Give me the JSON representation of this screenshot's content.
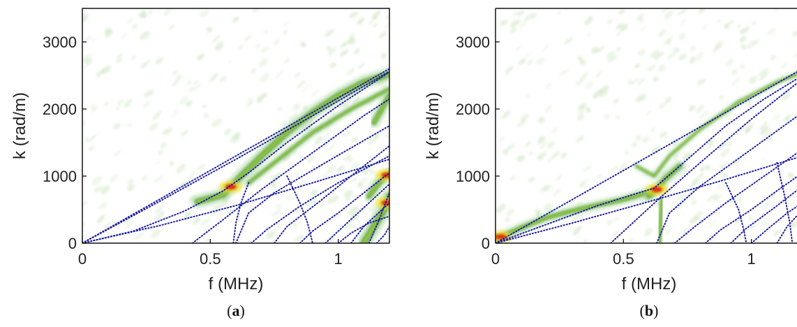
{
  "chart_data": [
    {
      "type": "heatmap",
      "caption_letter": "a",
      "xlabel": "f (MHz)",
      "ylabel": "k (rad/m)",
      "xlim": [
        0,
        1.2
      ],
      "ylim": [
        0,
        3500
      ],
      "xticks": [
        "0",
        "0.5",
        "1"
      ],
      "xtick_values": [
        0,
        0.5,
        1
      ],
      "yticks": [
        "0",
        "1000",
        "2000",
        "3000"
      ],
      "ytick_values": [
        0,
        1000,
        2000,
        3000
      ],
      "overlay_color": "#1a1aa0",
      "overlay_curves": [
        [
          [
            0,
            0
          ],
          [
            0.3,
            650
          ],
          [
            0.6,
            1300
          ],
          [
            0.9,
            1950
          ],
          [
            1.2,
            2600
          ]
        ],
        [
          [
            0,
            0
          ],
          [
            0.3,
            620
          ],
          [
            0.6,
            1250
          ],
          [
            0.9,
            1900
          ],
          [
            1.2,
            2560
          ]
        ],
        [
          [
            0,
            0
          ],
          [
            0.2,
            180
          ],
          [
            0.4,
            480
          ],
          [
            0.55,
            780
          ],
          [
            0.65,
            1050
          ],
          [
            0.8,
            1500
          ],
          [
            1.0,
            2050
          ],
          [
            1.2,
            2550
          ]
        ],
        [
          [
            0,
            0
          ],
          [
            0.3,
            260
          ],
          [
            0.6,
            560
          ],
          [
            0.9,
            900
          ],
          [
            1.2,
            1250
          ]
        ],
        [
          [
            0.43,
            0
          ],
          [
            0.55,
            350
          ],
          [
            0.7,
            800
          ],
          [
            0.9,
            1350
          ],
          [
            1.1,
            1900
          ],
          [
            1.2,
            2150
          ]
        ],
        [
          [
            0.6,
            0
          ],
          [
            0.65,
            450
          ],
          [
            0.75,
            750
          ],
          [
            0.95,
            1200
          ],
          [
            1.2,
            1750
          ]
        ],
        [
          [
            0.65,
            900
          ],
          [
            0.62,
            600
          ],
          [
            0.6,
            300
          ],
          [
            0.59,
            0
          ]
        ],
        [
          [
            0.66,
            0
          ],
          [
            0.72,
            200
          ],
          [
            0.85,
            550
          ],
          [
            1.0,
            900
          ],
          [
            1.2,
            1300
          ]
        ],
        [
          [
            0.75,
            0
          ],
          [
            0.8,
            250
          ],
          [
            0.92,
            600
          ],
          [
            1.05,
            1000
          ],
          [
            1.2,
            1450
          ]
        ],
        [
          [
            0.85,
            0
          ],
          [
            0.9,
            180
          ],
          [
            1.0,
            450
          ],
          [
            1.1,
            750
          ],
          [
            1.2,
            1050
          ]
        ],
        [
          [
            0.8,
            1000
          ],
          [
            0.85,
            600
          ],
          [
            0.88,
            300
          ],
          [
            0.9,
            0
          ]
        ],
        [
          [
            0.95,
            0
          ],
          [
            1.02,
            250
          ],
          [
            1.12,
            600
          ],
          [
            1.2,
            880
          ]
        ],
        [
          [
            1.05,
            0
          ],
          [
            1.1,
            250
          ],
          [
            1.2,
            600
          ]
        ],
        [
          [
            1.12,
            0
          ],
          [
            1.16,
            350
          ],
          [
            1.2,
            750
          ]
        ],
        [
          [
            1.0,
            0
          ],
          [
            1.05,
            150
          ],
          [
            1.12,
            300
          ],
          [
            1.2,
            400
          ]
        ],
        [
          [
            1.15,
            0
          ],
          [
            1.18,
            120
          ],
          [
            1.2,
            250
          ]
        ]
      ],
      "energy_ridges": [
        {
          "points": [
            [
              0.45,
              620
            ],
            [
              0.55,
              720
            ],
            [
              0.62,
              1000
            ],
            [
              0.7,
              1300
            ],
            [
              0.8,
              1650
            ],
            [
              0.9,
              1950
            ],
            [
              1.0,
              2200
            ],
            [
              1.1,
              2400
            ],
            [
              1.2,
              2520
            ]
          ],
          "width": 7,
          "peak_x": 0.58
        },
        {
          "points": [
            [
              0.65,
              900
            ],
            [
              0.75,
              1200
            ],
            [
              0.9,
              1650
            ],
            [
              1.05,
              2000
            ],
            [
              1.2,
              2300
            ]
          ],
          "width": 4
        },
        {
          "points": [
            [
              1.1,
              0
            ],
            [
              1.14,
              250
            ],
            [
              1.18,
              500
            ],
            [
              1.2,
              700
            ]
          ],
          "width": 8,
          "peak_x": 1.19
        },
        {
          "points": [
            [
              1.12,
              700
            ],
            [
              1.16,
              900
            ],
            [
              1.2,
              1050
            ]
          ],
          "width": 6,
          "peak_x": 1.19
        },
        {
          "points": [
            [
              1.14,
              1800
            ],
            [
              1.17,
              2000
            ],
            [
              1.2,
              2200
            ]
          ],
          "width": 6
        }
      ]
    },
    {
      "type": "heatmap",
      "caption_letter": "b",
      "xlabel": "f (MHz)",
      "ylabel": "k (rad/m)",
      "xlim": [
        0,
        1.2
      ],
      "ylim": [
        0,
        3500
      ],
      "xticks": [
        "0",
        "0.5",
        "1"
      ],
      "xtick_values": [
        0,
        0.5,
        1
      ],
      "yticks": [
        "0",
        "1000",
        "2000",
        "3000"
      ],
      "ytick_values": [
        0,
        1000,
        2000,
        3000
      ],
      "overlay_color": "#1a1aa0",
      "overlay_curves": [
        [
          [
            0,
            0
          ],
          [
            0.3,
            650
          ],
          [
            0.6,
            1300
          ],
          [
            0.9,
            1950
          ],
          [
            1.2,
            2600
          ]
        ],
        [
          [
            0,
            0
          ],
          [
            0.2,
            280
          ],
          [
            0.4,
            560
          ],
          [
            0.55,
            740
          ],
          [
            0.62,
            820
          ],
          [
            0.72,
            1150
          ],
          [
            0.9,
            1750
          ],
          [
            1.05,
            2150
          ],
          [
            1.2,
            2500
          ]
        ],
        [
          [
            0,
            0
          ],
          [
            0.3,
            300
          ],
          [
            0.6,
            620
          ],
          [
            0.9,
            950
          ],
          [
            1.2,
            1300
          ]
        ],
        [
          [
            0.45,
            0
          ],
          [
            0.55,
            350
          ],
          [
            0.65,
            700
          ],
          [
            0.8,
            1200
          ],
          [
            1.0,
            1850
          ],
          [
            1.2,
            2450
          ]
        ],
        [
          [
            0.63,
            0
          ],
          [
            0.68,
            450
          ],
          [
            0.8,
            850
          ],
          [
            1.0,
            1400
          ],
          [
            1.2,
            1950
          ]
        ],
        [
          [
            0.7,
            0
          ],
          [
            0.78,
            250
          ],
          [
            0.9,
            600
          ],
          [
            1.05,
            1000
          ],
          [
            1.2,
            1400
          ]
        ],
        [
          [
            0.82,
            0
          ],
          [
            0.88,
            200
          ],
          [
            1.0,
            500
          ],
          [
            1.1,
            780
          ],
          [
            1.2,
            1050
          ]
        ],
        [
          [
            0.92,
            0
          ],
          [
            0.98,
            220
          ],
          [
            1.08,
            500
          ],
          [
            1.2,
            850
          ]
        ],
        [
          [
            1.0,
            0
          ],
          [
            1.06,
            200
          ],
          [
            1.14,
            450
          ],
          [
            1.2,
            600
          ]
        ],
        [
          [
            1.1,
            0
          ],
          [
            1.14,
            250
          ],
          [
            1.2,
            500
          ]
        ],
        [
          [
            0.9,
            900
          ],
          [
            0.95,
            500
          ],
          [
            0.97,
            200
          ],
          [
            0.98,
            0
          ]
        ],
        [
          [
            1.1,
            1200
          ],
          [
            1.13,
            700
          ],
          [
            1.15,
            300
          ],
          [
            1.16,
            0
          ]
        ]
      ],
      "energy_ridges": [
        {
          "points": [
            [
              0,
              60
            ],
            [
              0.1,
              230
            ],
            [
              0.2,
              380
            ],
            [
              0.3,
              480
            ],
            [
              0.4,
              570
            ],
            [
              0.5,
              650
            ],
            [
              0.6,
              760
            ]
          ],
          "width": 5,
          "peak_x": 0.02
        },
        {
          "points": [
            [
              0.6,
              700
            ],
            [
              0.63,
              800
            ],
            [
              0.66,
              950
            ],
            [
              0.72,
              1150
            ]
          ],
          "width": 6,
          "peak_x": 0.63
        },
        {
          "points": [
            [
              0.55,
              1150
            ],
            [
              0.62,
              1000
            ],
            [
              0.68,
              1300
            ],
            [
              0.8,
              1700
            ],
            [
              0.95,
              2100
            ],
            [
              1.1,
              2400
            ],
            [
              1.2,
              2550
            ]
          ],
          "width": 3
        },
        {
          "points": [
            [
              0.64,
              0
            ],
            [
              0.645,
              300
            ],
            [
              0.65,
              650
            ]
          ],
          "width": 4
        }
      ]
    }
  ]
}
